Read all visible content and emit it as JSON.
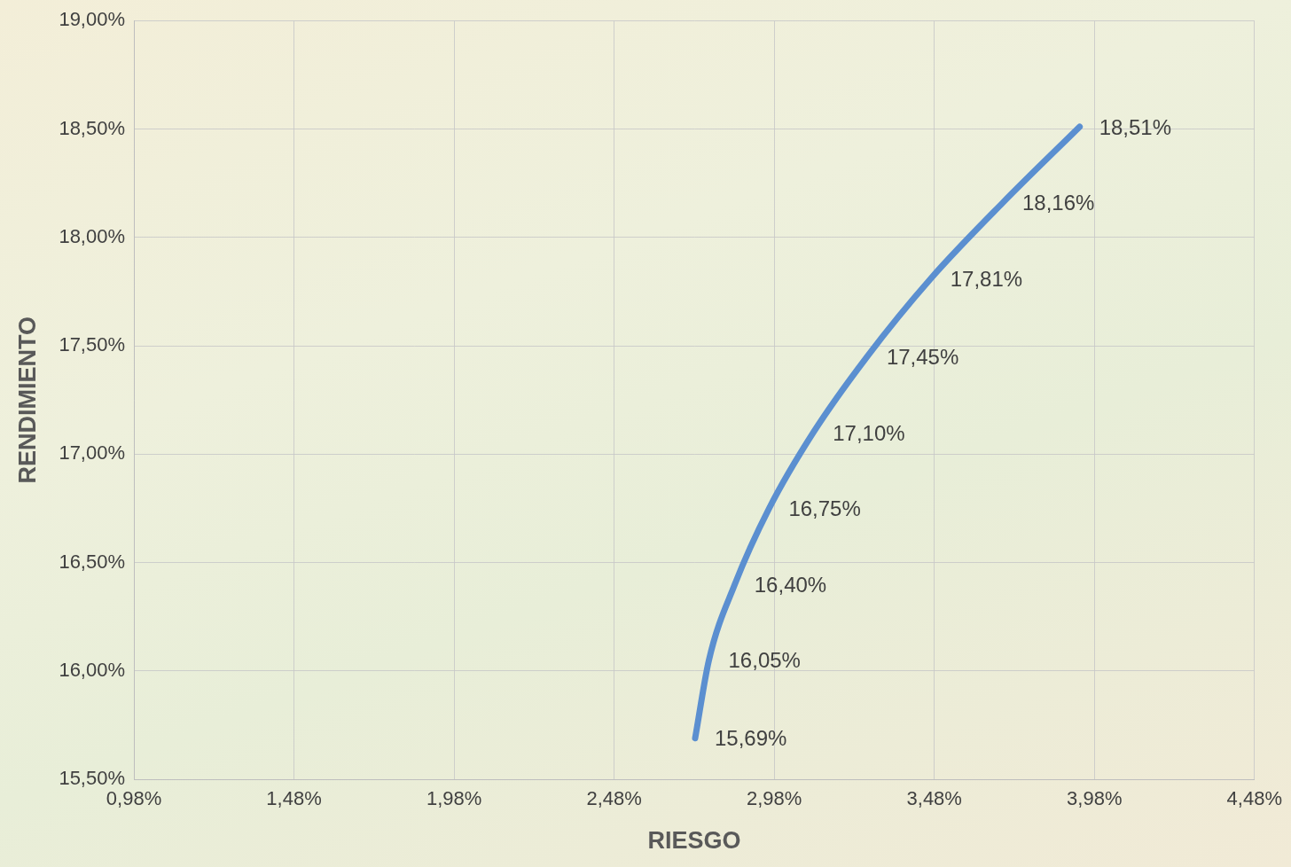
{
  "chart_data": {
    "type": "line",
    "x_label": "RIESGO",
    "y_label": "RENDIMIENTO",
    "x": [
      2.733,
      2.776,
      2.857,
      2.964,
      3.102,
      3.27,
      3.469,
      3.694,
      3.934
    ],
    "values": [
      15.69,
      16.05,
      16.4,
      16.75,
      17.1,
      17.45,
      17.81,
      18.16,
      18.51
    ],
    "value_labels": [
      "15,69%",
      "16,05%",
      "16,40%",
      "16,75%",
      "17,10%",
      "17,45%",
      "17,81%",
      "18,16%",
      "18,51%"
    ],
    "color": "#5b8fd0",
    "data_labels": true,
    "grid": true,
    "xlim": [
      0.98,
      4.48
    ],
    "xticks": [
      {
        "value": 0.98,
        "label": "0,98%"
      },
      {
        "value": 1.48,
        "label": "1,48%"
      },
      {
        "value": 1.98,
        "label": "1,98%"
      },
      {
        "value": 2.48,
        "label": "2,48%"
      },
      {
        "value": 2.98,
        "label": "2,98%"
      },
      {
        "value": 3.48,
        "label": "3,48%"
      },
      {
        "value": 3.98,
        "label": "3,98%"
      },
      {
        "value": 4.48,
        "label": "4,48%"
      }
    ],
    "ylim": [
      15.5,
      19.0
    ],
    "yticks": [
      {
        "value": 15.5,
        "label": "15,50%"
      },
      {
        "value": 16.0,
        "label": "16,00%"
      },
      {
        "value": 16.5,
        "label": "16,50%"
      },
      {
        "value": 17.0,
        "label": "17,00%"
      },
      {
        "value": 17.5,
        "label": "17,50%"
      },
      {
        "value": 18.0,
        "label": "18,00%"
      },
      {
        "value": 18.5,
        "label": "18,50%"
      },
      {
        "value": 19.0,
        "label": "19,00%"
      }
    ]
  }
}
